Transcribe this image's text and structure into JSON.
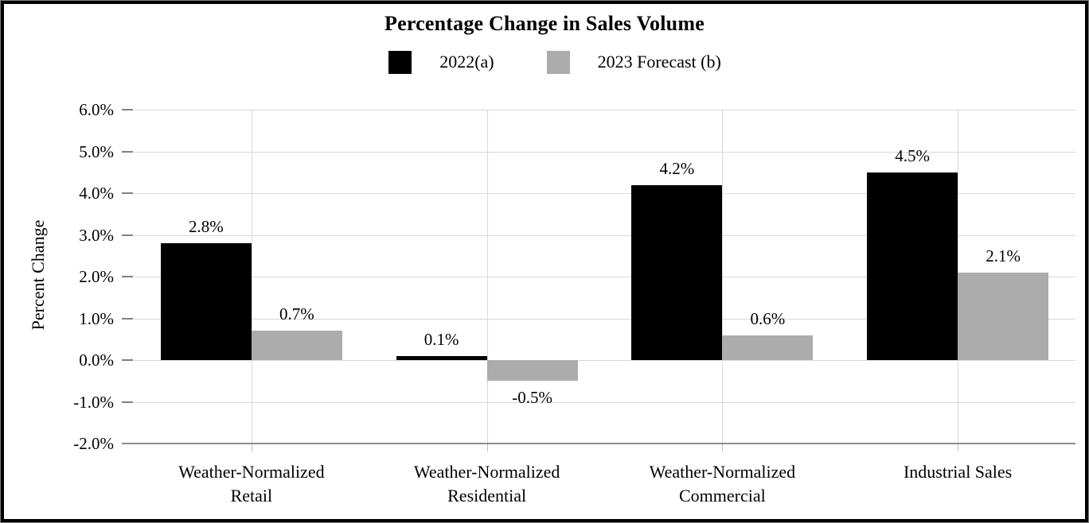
{
  "chart": {
    "title": "Percentage Change in Sales Volume",
    "y_axis_title": "Percent Change",
    "colors": {
      "series_2022": "#000000",
      "series_2023": "#ACACAC",
      "gridline": "#D9D9D9",
      "axis_line": "#8C8C8C",
      "background": "#FFFFFF",
      "frame_border": "#000000"
    }
  },
  "chart_data": {
    "type": "bar",
    "title": "Percentage Change in Sales Volume",
    "ylabel": "Percent Change",
    "xlabel": "",
    "ylim": [
      -2.0,
      6.0
    ],
    "y_tick_step": 1.0,
    "grid": true,
    "legend_position": "top",
    "categories": [
      "Weather-Normalized Retail",
      "Weather-Normalized Residential",
      "Weather-Normalized Commercial",
      "Industrial Sales"
    ],
    "categories_display": [
      [
        "Weather-Normalized",
        "Retail"
      ],
      [
        "Weather-Normalized",
        "Residential"
      ],
      [
        "Weather-Normalized",
        "Commercial"
      ],
      [
        "Industrial Sales"
      ]
    ],
    "series": [
      {
        "name": "2022(a)",
        "color": "#000000",
        "values": [
          2.8,
          0.1,
          4.2,
          4.5
        ],
        "labels": [
          "2.8%",
          "0.1%",
          "4.2%",
          "4.5%"
        ]
      },
      {
        "name": "2023 Forecast (b)",
        "color": "#ACACAC",
        "values": [
          0.7,
          -0.5,
          0.6,
          2.1
        ],
        "labels": [
          "0.7%",
          "-0.5%",
          "0.6%",
          "2.1%"
        ]
      }
    ],
    "y_ticks": [
      {
        "label": "6.0%",
        "value": 6.0
      },
      {
        "label": "5.0%",
        "value": 5.0
      },
      {
        "label": "4.0%",
        "value": 4.0
      },
      {
        "label": "3.0%",
        "value": 3.0
      },
      {
        "label": "2.0%",
        "value": 2.0
      },
      {
        "label": "1.0%",
        "value": 1.0
      },
      {
        "label": "0.0%",
        "value": 0.0
      },
      {
        "label": "-1.0%",
        "value": -1.0
      },
      {
        "label": "-2.0%",
        "value": -2.0
      }
    ]
  }
}
